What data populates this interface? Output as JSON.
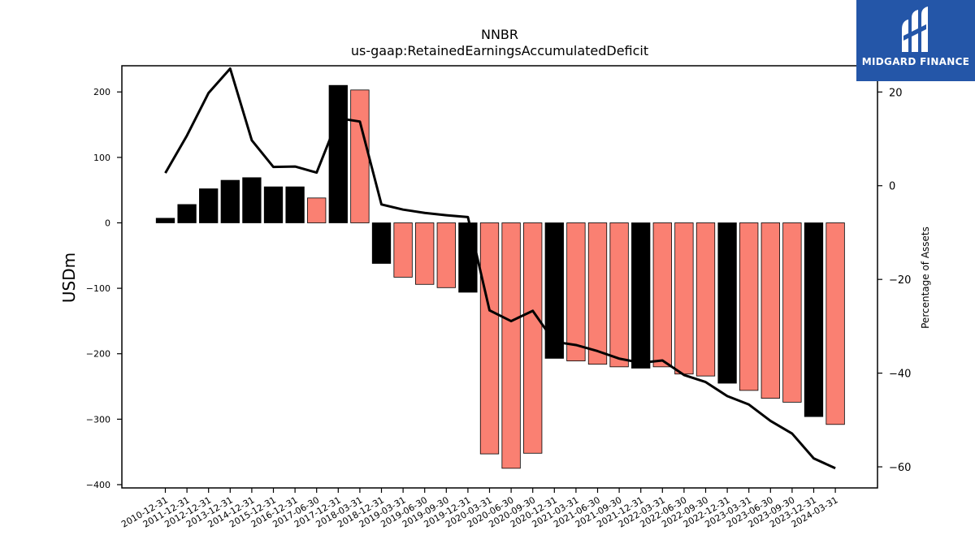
{
  "chart_data": {
    "type": "bar",
    "title": "NNBR",
    "subtitle": "us-gaap:RetainedEarningsAccumulatedDeficit",
    "ylabel": "USDm",
    "y2label": "Percentage of Assets",
    "ylim": [
      -405,
      240
    ],
    "y2lim": [
      -64.5,
      25.6
    ],
    "yticks": [
      200,
      100,
      0,
      -100,
      -200,
      -300,
      -400
    ],
    "y2ticks": [
      20,
      0,
      -20,
      -40,
      -60
    ],
    "grid": false,
    "categories": [
      "2010-12-31",
      "2011-12-31",
      "2012-12-31",
      "2013-12-31",
      "2014-12-31",
      "2015-12-31",
      "2016-12-31",
      "2017-06-30",
      "2017-12-31",
      "2018-03-31",
      "2018-12-31",
      "2019-03-31",
      "2019-06-30",
      "2019-09-30",
      "2019-12-31",
      "2020-03-31",
      "2020-06-30",
      "2020-09-30",
      "2020-12-31",
      "2021-03-31",
      "2021-06-30",
      "2021-09-30",
      "2021-12-31",
      "2022-03-31",
      "2022-06-30",
      "2022-09-30",
      "2022-12-31",
      "2023-03-31",
      "2023-06-30",
      "2023-09-30",
      "2023-12-31",
      "2024-03-31"
    ],
    "series": [
      {
        "kind": "bar",
        "axis": "left",
        "values": [
          7,
          28,
          52,
          65,
          69,
          55,
          55,
          38,
          210,
          203,
          -62,
          -83,
          -94,
          -99,
          -106,
          -353,
          -375,
          -352,
          -207,
          -211,
          -216,
          -220,
          -222,
          -220,
          -231,
          -234,
          -245,
          -256,
          -268,
          -274,
          -296,
          -308
        ],
        "colors": [
          "#000000",
          "#000000",
          "#000000",
          "#000000",
          "#000000",
          "#000000",
          "#000000",
          "#fa8072",
          "#000000",
          "#fa8072",
          "#000000",
          "#fa8072",
          "#fa8072",
          "#fa8072",
          "#000000",
          "#fa8072",
          "#fa8072",
          "#fa8072",
          "#000000",
          "#fa8072",
          "#fa8072",
          "#fa8072",
          "#000000",
          "#fa8072",
          "#fa8072",
          "#fa8072",
          "#000000",
          "#fa8072",
          "#fa8072",
          "#fa8072",
          "#000000",
          "#fa8072"
        ]
      },
      {
        "kind": "line",
        "axis": "right",
        "color": "#000000",
        "values": [
          2.7,
          10.7,
          19.8,
          25.0,
          9.7,
          4.0,
          4.1,
          2.8,
          14.4,
          13.7,
          -4.0,
          -5.1,
          -5.8,
          -6.3,
          -6.7,
          -26.6,
          -28.9,
          -26.7,
          -33.3,
          -34.0,
          -35.3,
          -36.9,
          -37.8,
          -37.3,
          -40.4,
          -41.9,
          -44.9,
          -46.7,
          -50.2,
          -52.9,
          -58.2,
          -60.3
        ]
      }
    ]
  },
  "logo": {
    "text": "MIDGARD FINANCE"
  }
}
